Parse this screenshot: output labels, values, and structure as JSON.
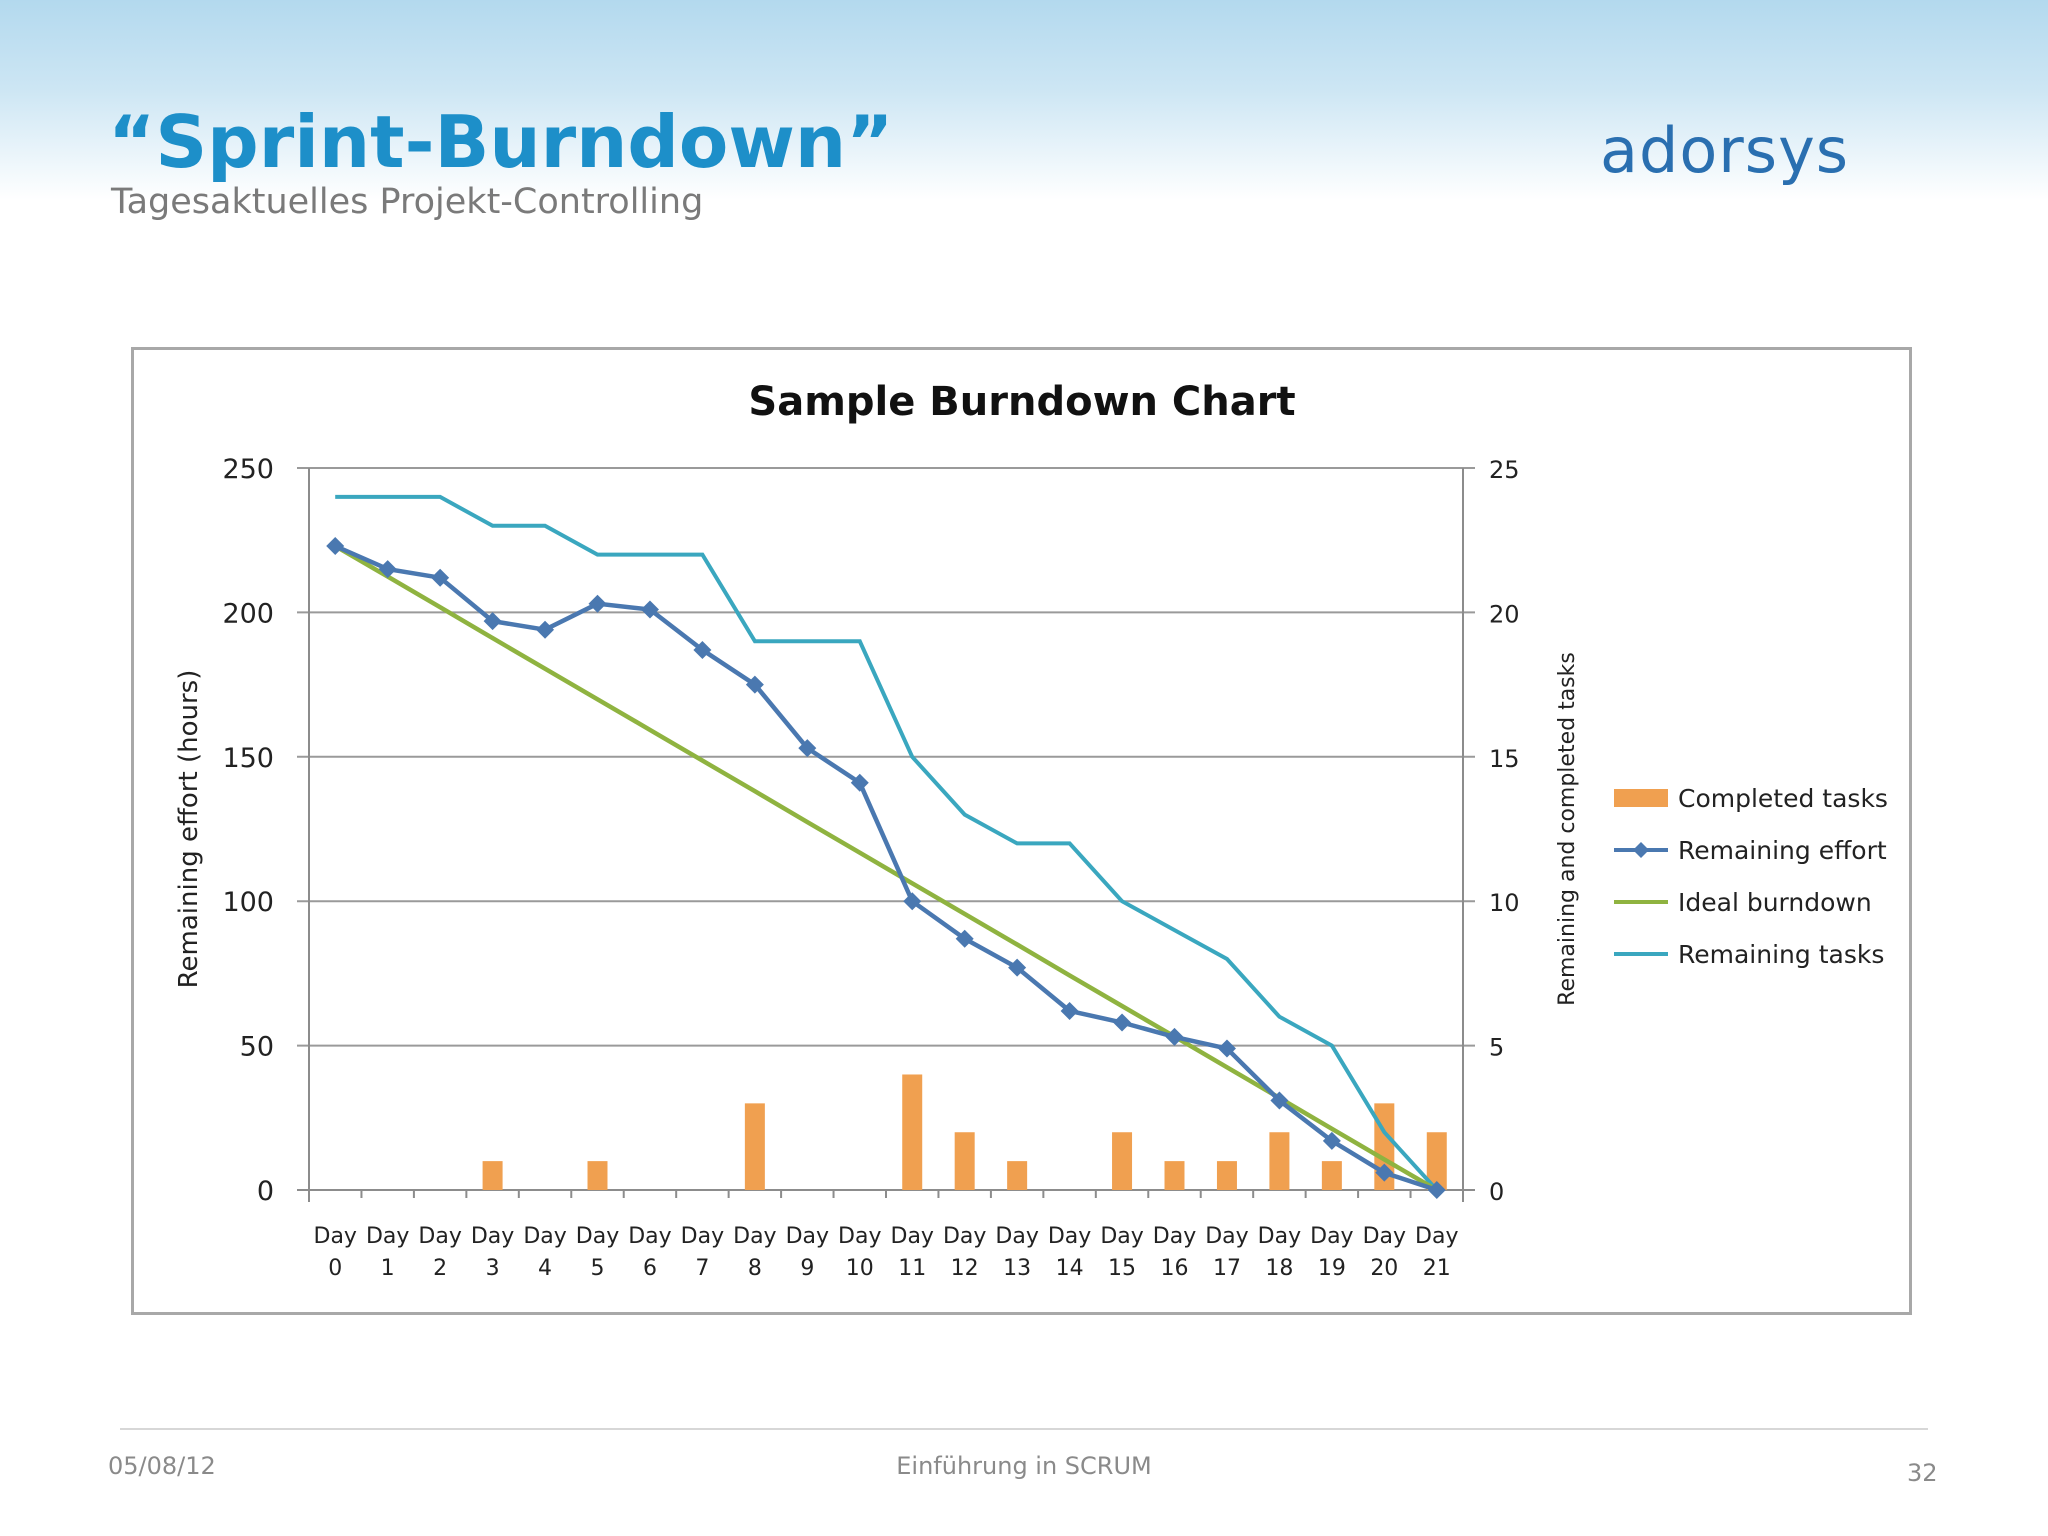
{
  "slide": {
    "title": "“Sprint-Burndown”",
    "subtitle": "Tagesaktuelles Projekt-Controlling",
    "logo_text": "adorsys",
    "footer_date": "05/08/12",
    "footer_center": "Einführung in SCRUM",
    "page_number": "32"
  },
  "colors": {
    "title": "#1d8fc9",
    "logo": "#2a6fb0",
    "completed_tasks": "#f0a050",
    "remaining_effort": "#4a78b0",
    "ideal_burndown": "#8fb340",
    "remaining_tasks": "#3aa7bf"
  },
  "chart_data": {
    "type": "bar",
    "title": "Sample Burndown Chart",
    "ylabel": "Remaining effort (hours)",
    "y2label": "Remaining and completed tasks",
    "ylim": [
      0,
      250
    ],
    "y_ticks": [
      0,
      50,
      100,
      150,
      200,
      250
    ],
    "y2lim": [
      0,
      25
    ],
    "y2_ticks": [
      0,
      5,
      10,
      15,
      20,
      25
    ],
    "grid": true,
    "legend_position": "right",
    "categories": [
      [
        "Day",
        "0"
      ],
      [
        "Day",
        "1"
      ],
      [
        "Day",
        "2"
      ],
      [
        "Day",
        "3"
      ],
      [
        "Day",
        "4"
      ],
      [
        "Day",
        "5"
      ],
      [
        "Day",
        "6"
      ],
      [
        "Day",
        "7"
      ],
      [
        "Day",
        "8"
      ],
      [
        "Day",
        "9"
      ],
      [
        "Day",
        "10"
      ],
      [
        "Day",
        "11"
      ],
      [
        "Day",
        "12"
      ],
      [
        "Day",
        "13"
      ],
      [
        "Day",
        "14"
      ],
      [
        "Day",
        "15"
      ],
      [
        "Day",
        "16"
      ],
      [
        "Day",
        "17"
      ],
      [
        "Day",
        "18"
      ],
      [
        "Day",
        "19"
      ],
      [
        "Day",
        "20"
      ],
      [
        "Day",
        "21"
      ]
    ],
    "series": [
      {
        "name": "Completed tasks",
        "type": "bar",
        "axis": "right",
        "values": [
          0,
          0,
          0,
          1,
          0,
          1,
          0,
          0,
          3,
          0,
          0,
          4,
          2,
          1,
          0,
          2,
          1,
          1,
          2,
          1,
          3,
          2
        ]
      },
      {
        "name": "Remaining effort",
        "type": "line-marker",
        "axis": "left",
        "values": [
          223,
          215,
          212,
          197,
          194,
          203,
          201,
          187,
          175,
          153,
          141,
          100,
          87,
          77,
          62,
          58,
          53,
          49,
          31,
          17,
          6,
          0
        ]
      },
      {
        "name": "Ideal burndown",
        "type": "line",
        "axis": "left",
        "values": [
          223,
          212.4,
          201.8,
          191.1,
          180.5,
          169.9,
          159.3,
          148.7,
          138.1,
          127.4,
          116.8,
          106.2,
          95.6,
          85,
          74.3,
          63.7,
          53.1,
          42.5,
          31.9,
          21.2,
          10.6,
          0
        ]
      },
      {
        "name": "Remaining tasks",
        "type": "line",
        "axis": "right",
        "values": [
          24,
          24,
          24,
          23,
          23,
          22,
          22,
          22,
          19,
          19,
          19,
          15,
          13,
          12,
          12,
          10,
          9,
          8,
          6,
          5,
          2,
          0
        ]
      }
    ]
  }
}
